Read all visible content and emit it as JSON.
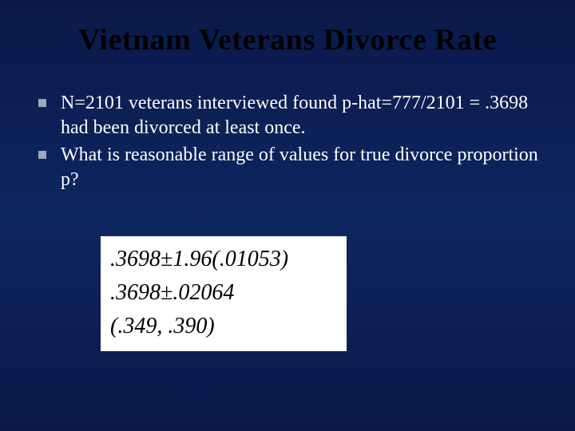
{
  "title": "Vietnam Veterans Divorce Rate",
  "bullets": [
    "N=2101 veterans interviewed found p-hat=777/2101 = .3698 had been divorced at least once.",
    "What is reasonable range of values for true divorce proportion p?"
  ],
  "math": {
    "line1_a": ".3698",
    "line1_pm": "±",
    "line1_b": "1.96(.01053)",
    "line2_a": ".3698",
    "line2_pm": "±",
    "line2_b": ".02064",
    "line3": "(.349, .390)"
  },
  "colors": {
    "bg_top": "#0a1a4a",
    "bg_mid": "#0d2560",
    "title_color": "#000000",
    "body_text": "#ffffff",
    "bullet_marker": "#9aa8b8",
    "math_bg": "#ffffff",
    "math_text": "#000000"
  },
  "fonts": {
    "title_pt": 38,
    "body_pt": 24,
    "math_pt": 28,
    "family": "Times New Roman"
  }
}
